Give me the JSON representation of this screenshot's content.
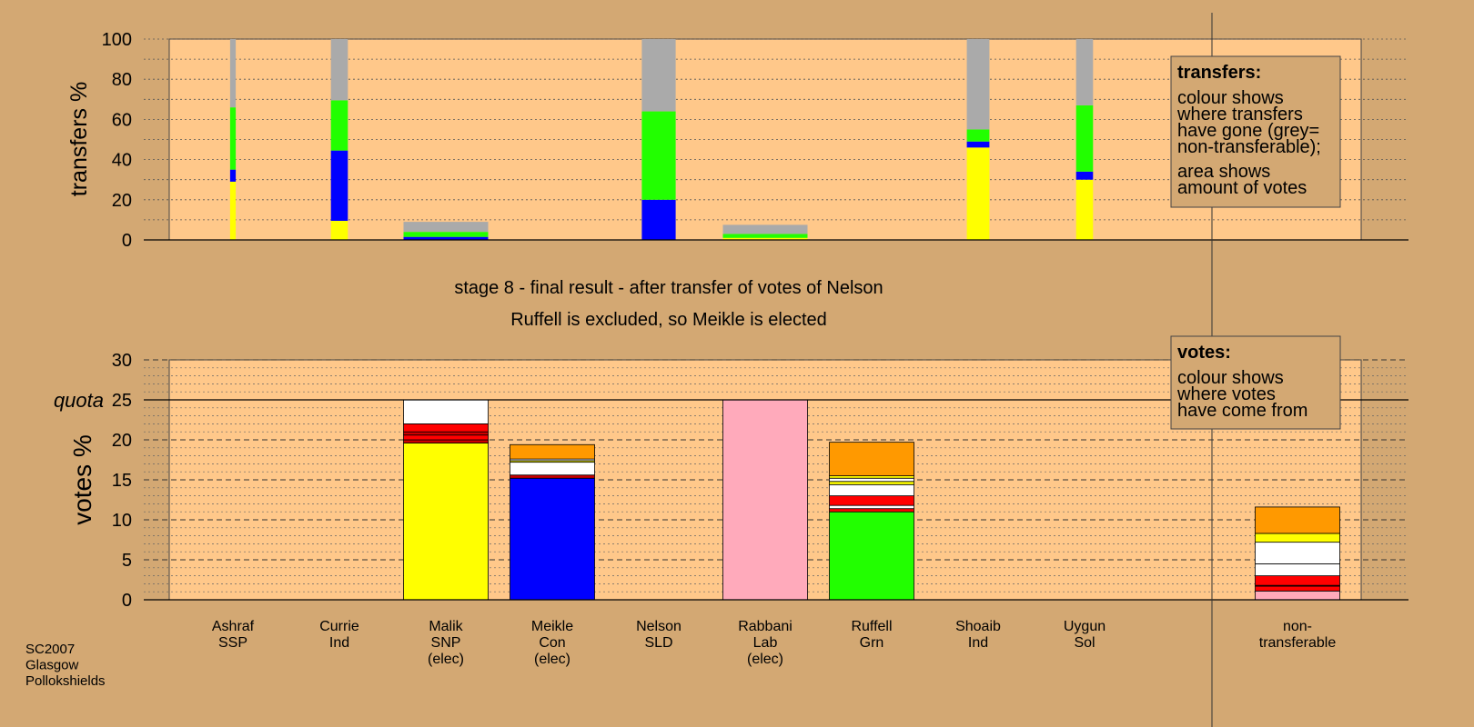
{
  "chart_data": [
    {
      "type": "bar",
      "stacked": true,
      "ylabel": "transfers %",
      "ylim": [
        0,
        100
      ],
      "yticks": [
        "0",
        "20",
        "40",
        "60",
        "80",
        "100"
      ],
      "legend": {
        "title": "transfers:",
        "lines1": [
          "colour shows",
          "where transfers",
          "have gone (grey=",
          "non-transferable);"
        ],
        "lines2": [
          "area shows",
          "amount of votes"
        ]
      },
      "columns": [
        {
          "candidate": "Ashraf",
          "width_votes": 0.5,
          "segments": [
            {
              "color": "#FFFF00",
              "value": 29
            },
            {
              "color": "#0000FF",
              "value": 6
            },
            {
              "color": "#22FF00",
              "value": 31
            },
            {
              "color": "#AAAAAA",
              "value": 34
            }
          ]
        },
        {
          "candidate": "Currie",
          "width_votes": 1.5,
          "segments": [
            {
              "color": "#FFFF00",
              "value": 9.5
            },
            {
              "color": "#0000FF",
              "value": 35
            },
            {
              "color": "#22FF00",
              "value": 25
            },
            {
              "color": "#AAAAAA",
              "value": 30.5
            }
          ]
        },
        {
          "candidate": "Malik",
          "width_votes": 7.5,
          "segments": [
            {
              "color": "#0000FF",
              "value": 1.5
            },
            {
              "color": "#22FF00",
              "value": 2.5
            },
            {
              "color": "#AAAAAA",
              "value": 5
            }
          ]
        },
        {
          "candidate": "Meikle",
          "width_votes": 0,
          "segments": []
        },
        {
          "candidate": "Nelson",
          "width_votes": 3,
          "segments": [
            {
              "color": "#0000FF",
              "value": 20
            },
            {
              "color": "#22FF00",
              "value": 44
            },
            {
              "color": "#AAAAAA",
              "value": 36
            }
          ]
        },
        {
          "candidate": "Rabbani",
          "width_votes": 7.5,
          "segments": [
            {
              "color": "#FFFF00",
              "value": 1
            },
            {
              "color": "#22FF00",
              "value": 2
            },
            {
              "color": "#AAAAAA",
              "value": 4.5
            }
          ]
        },
        {
          "candidate": "Ruffell",
          "width_votes": 0,
          "segments": []
        },
        {
          "candidate": "Shoaib",
          "width_votes": 2,
          "segments": [
            {
              "color": "#FFFF00",
              "value": 46
            },
            {
              "color": "#0000FF",
              "value": 3
            },
            {
              "color": "#22FF00",
              "value": 6
            },
            {
              "color": "#AAAAAA",
              "value": 45
            }
          ]
        },
        {
          "candidate": "Uygun",
          "width_votes": 1.5,
          "segments": [
            {
              "color": "#FFFF00",
              "value": 30
            },
            {
              "color": "#0000FF",
              "value": 4
            },
            {
              "color": "#22FF00",
              "value": 33
            },
            {
              "color": "#AAAAAA",
              "value": 33
            }
          ]
        }
      ]
    },
    {
      "type": "bar",
      "stacked": true,
      "ylabel": "votes %",
      "ylim": [
        0,
        30
      ],
      "yticks": [
        "0",
        "5",
        "10",
        "15",
        "20",
        "25",
        "30"
      ],
      "quota": 25,
      "quota_label": "quota",
      "legend": {
        "title": "votes:",
        "lines1": [
          "colour shows",
          "where votes",
          "have come from"
        ]
      },
      "categories": [
        {
          "name": "Ashraf",
          "party": "SSP",
          "status": ""
        },
        {
          "name": "Currie",
          "party": "Ind",
          "status": ""
        },
        {
          "name": "Malik",
          "party": "SNP",
          "status": "(elec)"
        },
        {
          "name": "Meikle",
          "party": "Con",
          "status": "(elec)"
        },
        {
          "name": "Nelson",
          "party": "SLD",
          "status": ""
        },
        {
          "name": "Rabbani",
          "party": "Lab",
          "status": "(elec)"
        },
        {
          "name": "Ruffell",
          "party": "Grn",
          "status": ""
        },
        {
          "name": "Shoaib",
          "party": "Ind",
          "status": ""
        },
        {
          "name": "Uygun",
          "party": "Sol",
          "status": ""
        }
      ],
      "nontransferable_label": [
        "non-",
        "transferable"
      ],
      "stacks": [
        [],
        [],
        [
          {
            "color": "#FFFF00",
            "value": 19.6
          },
          {
            "color": "#CC0000",
            "value": 0.4
          },
          {
            "color": "#FF0000",
            "value": 0.6
          },
          {
            "color": "#CC0000",
            "value": 0.4
          },
          {
            "color": "#FF0000",
            "value": 1.0
          },
          {
            "color": "#FFFFFF",
            "value": 3.0
          }
        ],
        [
          {
            "color": "#0000FF",
            "value": 15.2
          },
          {
            "color": "#CC0000",
            "value": 0.4
          },
          {
            "color": "#FFFFFF",
            "value": 1.6
          },
          {
            "color": "#FFFF00",
            "value": 0.2
          },
          {
            "color": "#FFFFFF",
            "value": 0.2
          },
          {
            "color": "#FF9900",
            "value": 1.8
          }
        ],
        [],
        [
          {
            "color": "#FFAABB",
            "value": 25
          }
        ],
        [
          {
            "color": "#22FF00",
            "value": 11.0
          },
          {
            "color": "#FF0000",
            "value": 0.4
          },
          {
            "color": "#FFFFFF",
            "value": 0.4
          },
          {
            "color": "#FF0000",
            "value": 1.2
          },
          {
            "color": "#FFFFFF",
            "value": 1.4
          },
          {
            "color": "#FFFF00",
            "value": 0.4
          },
          {
            "color": "#FFFFFF",
            "value": 0.4
          },
          {
            "color": "#FFFF00",
            "value": 0.3
          },
          {
            "color": "#FF9900",
            "value": 4.2
          }
        ],
        [],
        [],
        [
          {
            "color": "#FFAABB",
            "value": 1.1
          },
          {
            "color": "#FF0000",
            "value": 0.6
          },
          {
            "color": "#CC0000",
            "value": 0.1
          },
          {
            "color": "#FF0000",
            "value": 1.2
          },
          {
            "color": "#FFFFFF",
            "value": 1.5
          },
          {
            "color": "#FFFFFF",
            "value": 2.7
          },
          {
            "color": "#FFFF00",
            "value": 1.1
          },
          {
            "color": "#FF9900",
            "value": 3.3
          }
        ]
      ]
    }
  ],
  "stage_title": "stage 8 - final result - after transfer of votes of Nelson",
  "stage_subtitle": "Ruffell is excluded, so Meikle is elected",
  "footer_lines": [
    "SC2007",
    "Glasgow",
    "Pollokshields"
  ],
  "colors": {
    "background": "#D3A873",
    "plot_area": "#FFC88A",
    "legend_box": "#D3A873"
  }
}
